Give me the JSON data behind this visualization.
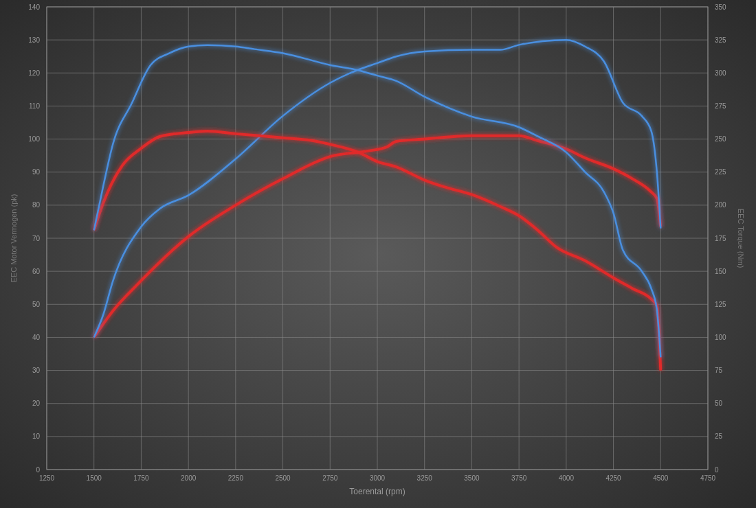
{
  "chart_data": {
    "type": "line",
    "xlabel": "Toerental (rpm)",
    "ylabel": "EEC Motor Vermogen (pk)",
    "y2label": "EEC Torque (Nm)",
    "xlim": [
      1250,
      4750
    ],
    "xticks": [
      1250,
      1500,
      1750,
      2000,
      2250,
      2500,
      2750,
      3000,
      3250,
      3500,
      3750,
      4000,
      4250,
      4500,
      4750
    ],
    "ylim": [
      0,
      140
    ],
    "yticks": [
      0,
      10,
      20,
      30,
      40,
      50,
      60,
      70,
      80,
      90,
      100,
      110,
      120,
      130,
      140
    ],
    "y2lim": [
      0,
      350
    ],
    "y2ticks": [
      0,
      25,
      50,
      75,
      100,
      125,
      150,
      175,
      200,
      225,
      250,
      275,
      300,
      325,
      350
    ],
    "grid": true,
    "series": [
      {
        "color": "#e02a2a",
        "x": [
          1500,
          1600,
          1730,
          2000,
          2250,
          2500,
          2750,
          2950,
          3050,
          3100,
          3250,
          3500,
          3750,
          3850,
          4000,
          4100,
          4250,
          4350,
          4450,
          4480,
          4500
        ],
        "values": [
          40,
          48,
          56,
          70.5,
          80,
          88,
          94.7,
          96.4,
          97.6,
          99.3,
          100,
          101,
          101,
          99.5,
          97,
          94.3,
          91,
          88,
          84,
          82,
          73.5
        ]
      },
      {
        "color": "#4a8fe0",
        "x": [
          1500,
          1550,
          1600,
          1750,
          1850,
          2000,
          2250,
          2500,
          2750,
          2900,
          3000,
          3100,
          3250,
          3500,
          3650,
          3750,
          4000,
          4100,
          4200,
          4300,
          4400,
          4450,
          4480,
          4500
        ],
        "values": [
          40,
          47,
          57,
          73.5,
          79,
          83,
          94,
          107,
          117,
          121,
          123,
          125,
          126.5,
          127,
          127,
          128.5,
          130,
          128,
          123.5,
          111,
          107,
          102.5,
          90,
          73
        ]
      },
      {
        "color": "#e02a2a",
        "axis": "y2",
        "x": [
          1500,
          1550,
          1650,
          1750,
          1850,
          2000,
          2100,
          2250,
          2500,
          2650,
          2750,
          2900,
          3000,
          3100,
          3250,
          3350,
          3500,
          3650,
          3750,
          3850,
          3950,
          4100,
          4250,
          4350,
          4450,
          4480,
          4500
        ],
        "values": [
          181,
          202,
          230,
          243,
          252,
          255,
          256,
          254,
          251,
          249,
          246,
          240,
          233,
          229,
          219,
          214,
          208,
          199,
          192,
          181,
          168,
          158,
          145,
          137,
          129,
          124,
          75
        ]
      },
      {
        "color": "#4a8fe0",
        "axis": "y2",
        "x": [
          1500,
          1550,
          1600,
          1700,
          1800,
          1900,
          2000,
          2100,
          2250,
          2350,
          2500,
          2750,
          2900,
          3000,
          3100,
          3250,
          3500,
          3750,
          3850,
          4000,
          4100,
          4200,
          4250,
          4300,
          4400,
          4450,
          4480,
          4500
        ],
        "values": [
          181,
          215,
          246,
          277,
          306,
          315,
          320,
          321,
          320,
          318,
          315,
          306,
          302,
          298,
          294,
          282,
          267,
          259,
          252,
          240,
          225,
          210,
          194,
          166,
          150,
          137,
          121,
          85
        ]
      }
    ]
  }
}
